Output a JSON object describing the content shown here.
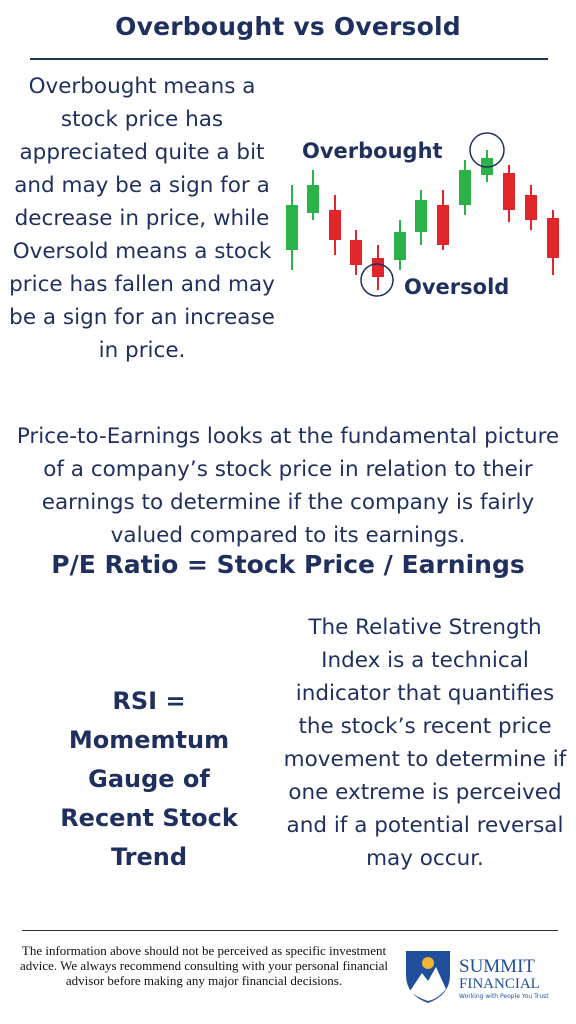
{
  "header": {
    "title": "Overbought vs Oversold"
  },
  "overbought_section": {
    "text": "Overbought means a stock price has appreciated quite a bit and may be a sign for a decrease in price, while Oversold means a stock price has fallen and may be a sign for an increase in price.",
    "labels": [
      "Overbought",
      "Oversold"
    ]
  },
  "pe_section": {
    "text": "Price-to-Earnings looks at the fundamental picture of a company’s stock price in relation to their earnings to determine if the company is fairly valued compared to its earnings.",
    "formula": "P/E Ratio = Stock Price / Earnings"
  },
  "rsi_section": {
    "heading": "RSI = Momemtum Gauge of Recent Stock Trend",
    "text": "The Relative Strength Index is a technical indicator that quantifies the stock’s recent price movement to determine if one extreme is perceived and if a potential reversal may occur."
  },
  "footer": {
    "disclaimer": "The information above should not be perceived as specific investment advice. We always recommend consulting with your personal financial advisor before making any major financial decisions.",
    "logo": {
      "name_line1": "SUMMIT",
      "name_line2": "FINANCIAL",
      "tagline": "Working with People You Trust"
    }
  }
}
